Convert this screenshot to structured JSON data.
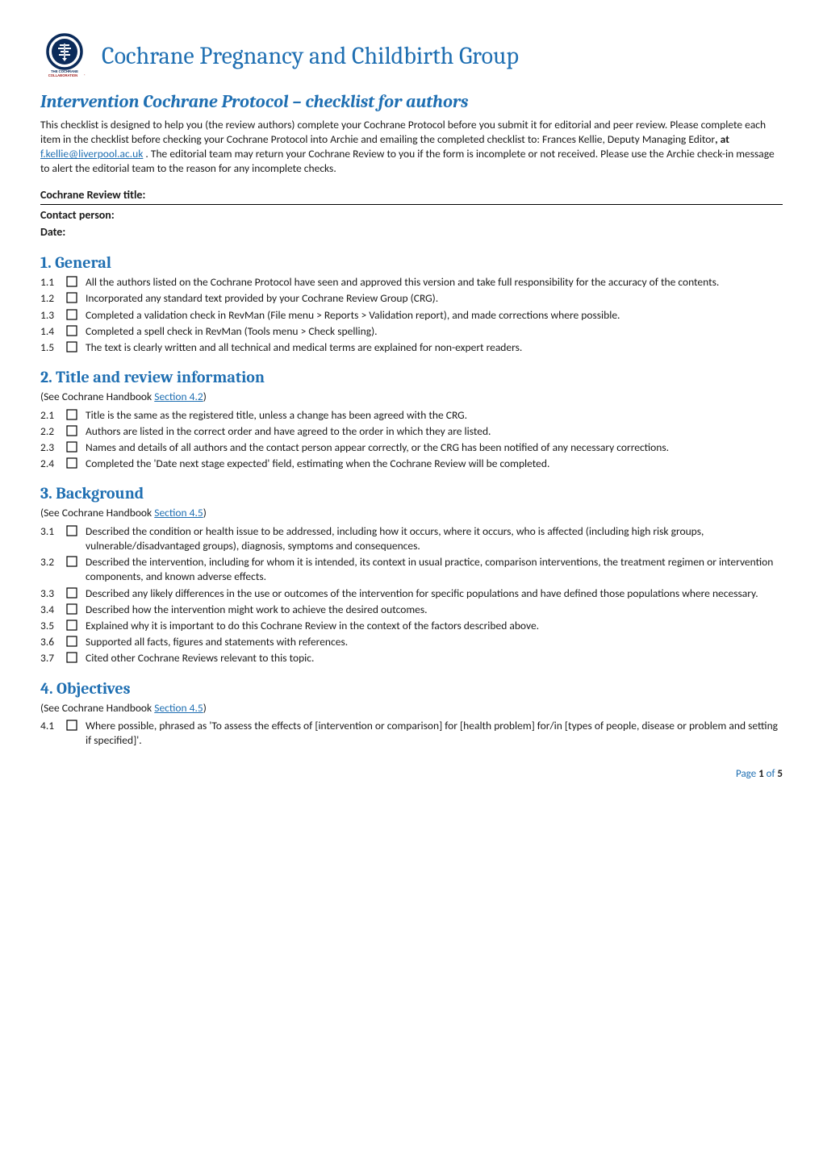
{
  "logo": {
    "outer_ring_color": "#0b2b5a",
    "inner_navy": "#0b2b5a",
    "accent_red": "#a02020",
    "text_line1": "THE COCHRANE",
    "text_line2": "COLLABORATION",
    "reg_mark": "®"
  },
  "group_title": "Cochrane Pregnancy and Childbirth Group",
  "doc_title": "Intervention Cochrane Protocol – checklist for authors",
  "intro_parts": {
    "p1": "This checklist is designed to help you (the review authors) complete your Cochrane Protocol before you submit it for editorial and peer review. Please complete each item in the checklist before checking your Cochrane Protocol into Archie and emailing the completed checklist to: Frances Kellie, Deputy Managing Editor",
    "bold_at": ", at ",
    "email": "f.kellie@liverpool.ac.uk",
    "p2": " . The editorial team may return your Cochrane Review to you if the form is incomplete or not received.  Please use the Archie check-in message to alert the editorial team to the reason for any incomplete checks."
  },
  "meta": {
    "review_title_label": "Cochrane Review title:",
    "contact_label": "Contact person:",
    "date_label": "Date:"
  },
  "sections": [
    {
      "number": "1.",
      "title": "General",
      "handbook_ref": null,
      "items": [
        {
          "num": "1.1",
          "text": "All the authors listed on the Cochrane Protocol have seen and approved this version and take full responsibility for the accuracy of the contents."
        },
        {
          "num": "1.2",
          "text": "Incorporated any standard text provided by your Cochrane Review Group (CRG)."
        },
        {
          "num": "1.3",
          "text": "Completed a validation check in RevMan (File menu > Reports > Validation report), and made corrections where possible."
        },
        {
          "num": "1.4",
          "text": "Completed a spell check in RevMan (Tools menu > Check spelling)."
        },
        {
          "num": "1.5",
          "text": "The text is clearly written and all technical and medical terms are explained for non-expert readers."
        }
      ]
    },
    {
      "number": "2.",
      "title": "Title and review information",
      "handbook_ref": {
        "prefix": "(See Cochrane Handbook ",
        "link": "Section 4.2",
        "suffix": ")"
      },
      "items": [
        {
          "num": "2.1",
          "text": "Title is the same as the registered title, unless a change has been agreed with the CRG."
        },
        {
          "num": "2.2",
          "text": "Authors are listed in the correct order and have agreed to the order in which they are listed."
        },
        {
          "num": "2.3",
          "text": "Names and details of all authors and the contact person appear correctly, or the CRG has been notified of any necessary corrections."
        },
        {
          "num": "2.4",
          "text": "Completed the 'Date next stage expected' field, estimating when the Cochrane Review will be completed."
        }
      ]
    },
    {
      "number": "3.",
      "title": "Background",
      "handbook_ref": {
        "prefix": "(See Cochrane Handbook ",
        "link": "Section 4.5",
        "suffix": ")"
      },
      "items": [
        {
          "num": "3.1",
          "text": "Described the condition or health issue to be addressed, including how it occurs, where it occurs, who is affected (including high risk groups, vulnerable/disadvantaged groups), diagnosis, symptoms and consequences."
        },
        {
          "num": "3.2",
          "text": "Described the intervention, including for whom it is intended, its context in usual practice, comparison interventions, the treatment regimen or intervention components, and known adverse effects."
        },
        {
          "num": "3.3",
          "text": "Described any likely differences in the use or outcomes of the intervention for specific populations and have defined those populations where necessary."
        },
        {
          "num": "3.4",
          "text": "Described how the intervention might work to achieve the desired outcomes."
        },
        {
          "num": "3.5",
          "text": "Explained why it is important to do this Cochrane Review in the context of the factors described above."
        },
        {
          "num": "3.6",
          "text": "Supported all facts, figures and statements with references."
        },
        {
          "num": "3.7",
          "text": "Cited other Cochrane Reviews relevant to this topic."
        }
      ]
    },
    {
      "number": "4.",
      "title": "Objectives",
      "handbook_ref": {
        "prefix": "(See Cochrane Handbook ",
        "link": "Section 4.5",
        "suffix": ")"
      },
      "items": [
        {
          "num": "4.1",
          "text": "Where possible, phrased as 'To assess the effects of [intervention or comparison] for [health problem] for/in [types of people, disease or problem and setting if specified]'."
        }
      ]
    }
  ],
  "footer": {
    "page_label": "Page ",
    "current": "1",
    "of_label": " of ",
    "total": "5"
  },
  "colors": {
    "blue": "#1f6fb2",
    "text": "#1a1a1a",
    "black": "#000000"
  }
}
